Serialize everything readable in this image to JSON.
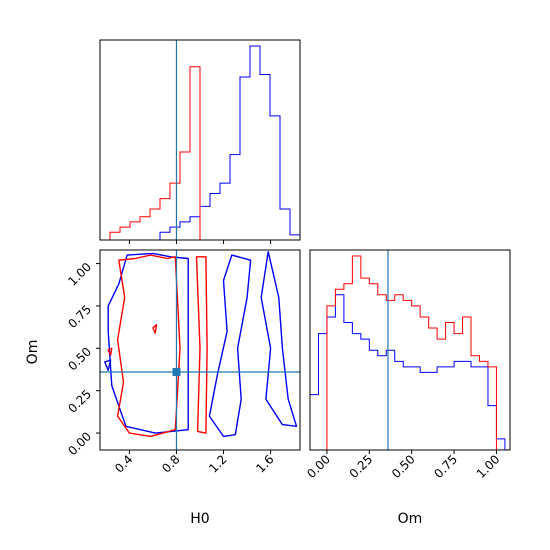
{
  "chart_data": {
    "type": "corner",
    "parameters": [
      "H0",
      "Om"
    ],
    "colors": {
      "series_a": "#0000ff",
      "series_b": "#ff0000",
      "truth": "#1f77b4",
      "frame": "#000000"
    },
    "truth": {
      "H0": 0.8,
      "Om": 0.36
    },
    "panels": [
      {
        "id": "hist_H0",
        "type": "step-histogram",
        "xlim": [
          0.15,
          1.85
        ],
        "bin_edges": [
          0.15,
          0.235,
          0.32,
          0.405,
          0.49,
          0.575,
          0.66,
          0.745,
          0.83,
          0.915,
          1.0,
          1.085,
          1.17,
          1.255,
          1.34,
          1.425,
          1.51,
          1.595,
          1.68,
          1.765,
          1.85
        ],
        "series": [
          {
            "color": "blue",
            "counts": [
              0,
              0,
              0,
              0,
              0,
              0,
              3,
              5,
              7,
              9,
              13,
              18,
              22,
              33,
              63,
              75,
              64,
              48,
              12,
              2
            ]
          },
          {
            "color": "red",
            "counts": [
              0,
              3,
              5,
              7,
              9,
              12,
              16,
              22,
              34,
              67,
              0,
              0,
              0,
              0,
              0,
              0,
              0,
              0,
              0,
              0
            ]
          }
        ]
      },
      {
        "id": "contour_H0_Om",
        "type": "contour",
        "xlabel": "H0",
        "ylabel": "Om",
        "xlim": [
          0.15,
          1.85
        ],
        "ylim": [
          -0.1,
          1.08
        ],
        "xticks": [
          "0.4",
          "0.8",
          "1.2",
          "1.6"
        ],
        "yticks": [
          "0.00",
          "0.25",
          "0.50",
          "0.75",
          "1.00"
        ],
        "series": [
          {
            "color": "blue",
            "contours": [
              [
                [
                  1.27,
                  1.05
                ],
                [
                  1.2,
                  0.9
                ],
                [
                  1.23,
                  0.6
                ],
                [
                  1.15,
                  0.35
                ],
                [
                  1.08,
                  0.1
                ],
                [
                  1.2,
                  -0.02
                ],
                [
                  1.3,
                  -0.01
                ],
                [
                  1.35,
                  0.2
                ],
                [
                  1.32,
                  0.5
                ],
                [
                  1.4,
                  0.8
                ],
                [
                  1.43,
                  1.02
                ],
                [
                  1.27,
                  1.05
                ]
              ],
              [
                [
                  1.58,
                  1.07
                ],
                [
                  1.52,
                  0.8
                ],
                [
                  1.6,
                  0.5
                ],
                [
                  1.56,
                  0.2
                ],
                [
                  1.7,
                  0.05
                ],
                [
                  1.82,
                  0.04
                ],
                [
                  1.75,
                  0.2
                ],
                [
                  1.7,
                  0.5
                ],
                [
                  1.67,
                  0.8
                ],
                [
                  1.58,
                  1.07
                ]
              ],
              [
                [
                  0.38,
                  1.05
                ],
                [
                  0.6,
                  1.06
                ],
                [
                  0.75,
                  1.04
                ],
                [
                  0.9,
                  1.03
                ],
                [
                  0.9,
                  0.5
                ],
                [
                  0.9,
                  0.02
                ],
                [
                  0.62,
                  0.0
                ],
                [
                  0.37,
                  0.04
                ],
                [
                  0.25,
                  0.28
                ],
                [
                  0.22,
                  0.6
                ],
                [
                  0.22,
                  0.75
                ],
                [
                  0.31,
                  0.88
                ],
                [
                  0.38,
                  1.05
                ]
              ],
              [
                [
                  0.19,
                  0.42
                ],
                [
                  0.24,
                  0.43
                ],
                [
                  0.22,
                  0.37
                ],
                [
                  0.19,
                  0.42
                ]
              ]
            ]
          },
          {
            "color": "red",
            "contours": [
              [
                [
                  0.31,
                  1.02
                ],
                [
                  0.45,
                  1.03
                ],
                [
                  0.58,
                  1.05
                ],
                [
                  0.72,
                  1.03
                ],
                [
                  0.79,
                  1.04
                ],
                [
                  0.83,
                  0.5
                ],
                [
                  0.79,
                  0.02
                ],
                [
                  0.58,
                  -0.02
                ],
                [
                  0.4,
                  0.0
                ],
                [
                  0.3,
                  0.1
                ],
                [
                  0.35,
                  0.3
                ],
                [
                  0.3,
                  0.55
                ],
                [
                  0.36,
                  0.8
                ],
                [
                  0.31,
                  1.02
                ]
              ],
              [
                [
                  0.97,
                  1.04
                ],
                [
                  1.05,
                  1.04
                ],
                [
                  1.06,
                  0.5
                ],
                [
                  1.05,
                  0.0
                ],
                [
                  0.98,
                  0.01
                ],
                [
                  1.0,
                  0.5
                ],
                [
                  0.97,
                  1.04
                ]
              ],
              [
                [
                  0.6,
                  0.62
                ],
                [
                  0.63,
                  0.64
                ],
                [
                  0.62,
                  0.59
                ],
                [
                  0.6,
                  0.62
                ]
              ],
              [
                [
                  0.22,
                  0.49
                ],
                [
                  0.25,
                  0.5
                ],
                [
                  0.24,
                  0.46
                ],
                [
                  0.22,
                  0.49
                ]
              ]
            ]
          }
        ]
      },
      {
        "id": "hist_Om",
        "type": "step-histogram",
        "xlabel": "Om",
        "xlim": [
          -0.1,
          1.08
        ],
        "xticks": [
          "0.00",
          "0.25",
          "0.50",
          "0.75",
          "1.00"
        ],
        "bin_edges": [
          -0.1,
          -0.05,
          0.0,
          0.05,
          0.1,
          0.15,
          0.2,
          0.25,
          0.3,
          0.35,
          0.4,
          0.45,
          0.5,
          0.55,
          0.6,
          0.65,
          0.7,
          0.75,
          0.8,
          0.85,
          0.9,
          0.95,
          1.0,
          1.05
        ],
        "series": [
          {
            "color": "blue",
            "counts": [
              10,
              21,
              24,
              28,
              23,
              21,
              20,
              18,
              17,
              18,
              16,
              15,
              15,
              14,
              14,
              15,
              15,
              16,
              16,
              15,
              15,
              8,
              2
            ]
          },
          {
            "color": "red",
            "counts": [
              0,
              0,
              26,
              29,
              30,
              35,
              31,
              30,
              28,
              27,
              28,
              27,
              26,
              24,
              22,
              20,
              23,
              21,
              24,
              17,
              16,
              15,
              0
            ]
          }
        ]
      }
    ]
  }
}
